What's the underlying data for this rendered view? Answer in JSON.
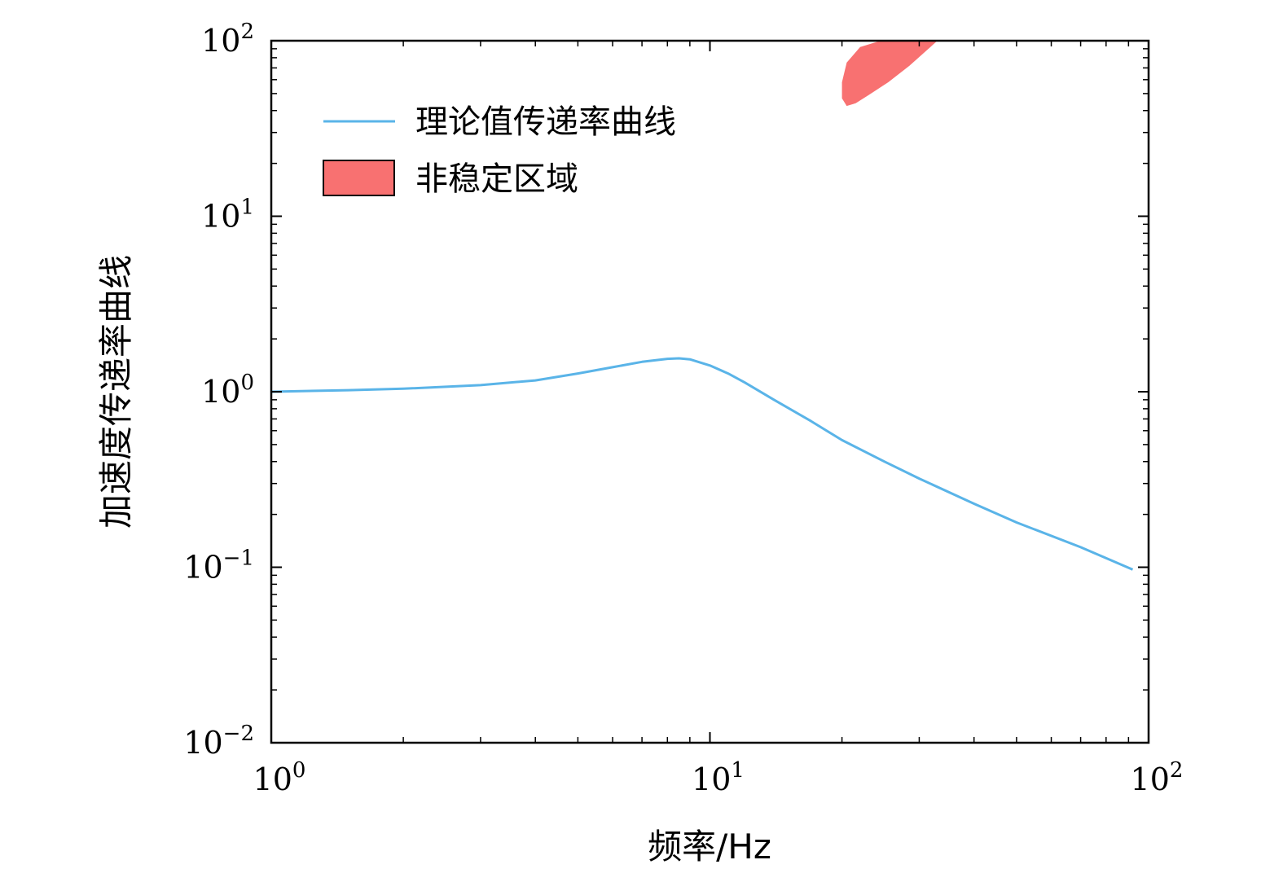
{
  "chart_data": {
    "type": "line",
    "xscale": "log",
    "yscale": "log",
    "xlim": [
      1,
      100
    ],
    "ylim": [
      0.01,
      100
    ],
    "xlabel": "频率/Hz",
    "ylabel": "加速度传递率曲线",
    "xticks": [
      {
        "value": 1,
        "base": "10",
        "exp": "0"
      },
      {
        "value": 10,
        "base": "10",
        "exp": "1"
      },
      {
        "value": 100,
        "base": "10",
        "exp": "2"
      }
    ],
    "yticks": [
      {
        "value": 0.01,
        "base": "10",
        "exp": "−2"
      },
      {
        "value": 0.1,
        "base": "10",
        "exp": "−1"
      },
      {
        "value": 1,
        "base": "10",
        "exp": "0"
      },
      {
        "value": 10,
        "base": "10",
        "exp": "1"
      },
      {
        "value": 100,
        "base": "10",
        "exp": "2"
      }
    ],
    "grid": false,
    "legend_position": "upper-left",
    "series": [
      {
        "name": "理论值传递率曲线",
        "kind": "line",
        "color": "#5ab4e8",
        "x": [
          1.0,
          1.5,
          2.0,
          3.0,
          4.0,
          5.0,
          6.0,
          7.0,
          8.0,
          8.5,
          9.0,
          10.0,
          11.0,
          12.0,
          14.0,
          17.0,
          20.0,
          25.0,
          30.0,
          40.0,
          50.0,
          70.0,
          92.0
        ],
        "y": [
          1.0,
          1.02,
          1.04,
          1.09,
          1.16,
          1.27,
          1.38,
          1.48,
          1.54,
          1.55,
          1.53,
          1.41,
          1.27,
          1.13,
          0.9,
          0.68,
          0.53,
          0.4,
          0.32,
          0.23,
          0.18,
          0.13,
          0.097
        ]
      },
      {
        "name": "非稳定区域",
        "kind": "area",
        "color": "#f87171",
        "edge_color": "#000000",
        "x": [
          20.5,
          21.5,
          23.0,
          25.5,
          28.5,
          31.5,
          33.0,
          31.0,
          27.5,
          24.5,
          22.0,
          20.5,
          20.0,
          20.0
        ],
        "y": [
          42.5,
          44.0,
          49.0,
          58.0,
          72.0,
          90.0,
          100.0,
          100.0,
          100.0,
          100.0,
          92.0,
          75.0,
          58.0,
          47.0
        ]
      }
    ]
  }
}
